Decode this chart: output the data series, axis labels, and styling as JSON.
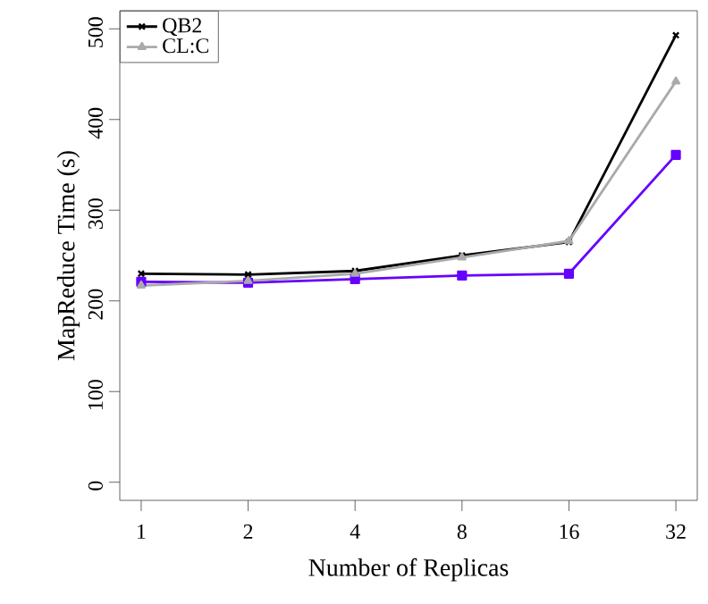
{
  "chart_data": {
    "type": "line",
    "xlabel": "Number of Replicas",
    "ylabel": "MapReduce Time (s)",
    "categories": [
      "1",
      "2",
      "4",
      "8",
      "16",
      "32"
    ],
    "series": [
      {
        "name": "QB2",
        "color": "#000000",
        "marker": "cross",
        "values": [
          230,
          229,
          233,
          250,
          265,
          493
        ]
      },
      {
        "color": "#6600ff",
        "marker": "square",
        "values": [
          221,
          220,
          224,
          228,
          230,
          361
        ]
      },
      {
        "name": "CL:C",
        "color": "#aaaaaa",
        "marker": "triangle",
        "values": [
          217,
          222,
          230,
          248,
          266,
          442
        ]
      }
    ],
    "ylim": [
      -20,
      520
    ],
    "yticks": [
      0,
      100,
      200,
      300,
      400,
      500
    ],
    "grid": false,
    "legend": "top left",
    "line_style": "solid"
  }
}
